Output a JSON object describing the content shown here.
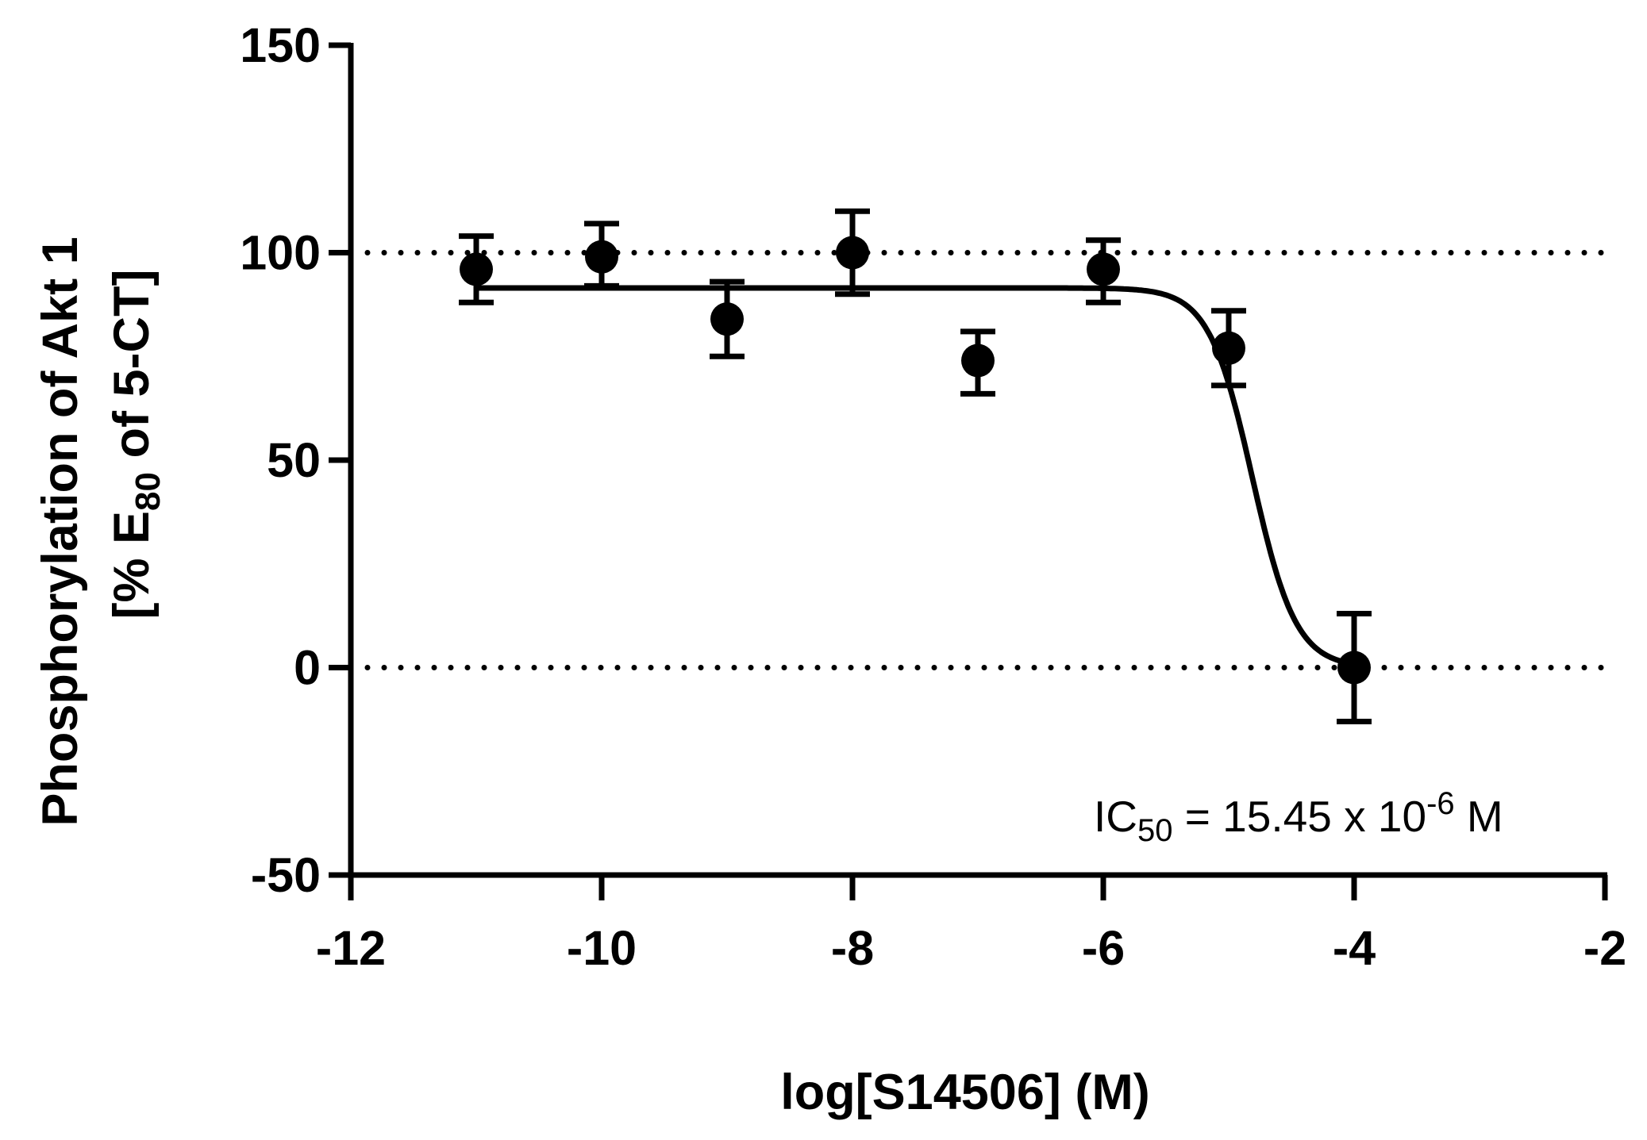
{
  "chart_data": {
    "type": "scatter",
    "title": "",
    "xlabel": "log[S14506] (M)",
    "ylabel_line1": "Phosphorylation of Akt 1",
    "ylabel_line2": {
      "prefix": "[% E",
      "subscript": "80",
      "suffix": " of 5-CT]"
    },
    "xlim": [
      -12,
      -2
    ],
    "ylim": [
      -50,
      150
    ],
    "x_ticks": [
      -12,
      -10,
      -8,
      -6,
      -4,
      -2
    ],
    "y_ticks": [
      -50,
      0,
      50,
      100,
      150
    ],
    "x_tick_labels": [
      "-12",
      "-10",
      "-8",
      "-6",
      "-4",
      "-2"
    ],
    "y_tick_labels": [
      "-50",
      "0",
      "50",
      "100",
      "150"
    ],
    "reference_lines": [
      100,
      0
    ],
    "reference_line_style": "dotted",
    "grid": false,
    "legend": "none",
    "series": [
      {
        "marker": "circle",
        "x": [
          -11,
          -10,
          -9,
          -8,
          -7,
          -6,
          -5,
          -4
        ],
        "y": [
          96,
          99,
          84,
          100,
          74,
          96,
          77,
          0
        ],
        "error_low": [
          88,
          92,
          75,
          90,
          66,
          88,
          68,
          -13
        ],
        "error_high": [
          104,
          107,
          93,
          110,
          81,
          103,
          86,
          13
        ]
      }
    ],
    "fit_curve": {
      "model": "sigmoidal dose-response",
      "top": 91.5,
      "bottom": 0,
      "log_ic50": -4.811,
      "hill_slope": -2.5,
      "x_range": [
        -11,
        -4
      ]
    },
    "annotation": {
      "prefix": "IC",
      "subscript": "50",
      "middle": " = 15.45 x 10",
      "superscript": "-6",
      "suffix": " M"
    },
    "colors": {
      "ink": "#000000",
      "background": "#ffffff"
    }
  }
}
